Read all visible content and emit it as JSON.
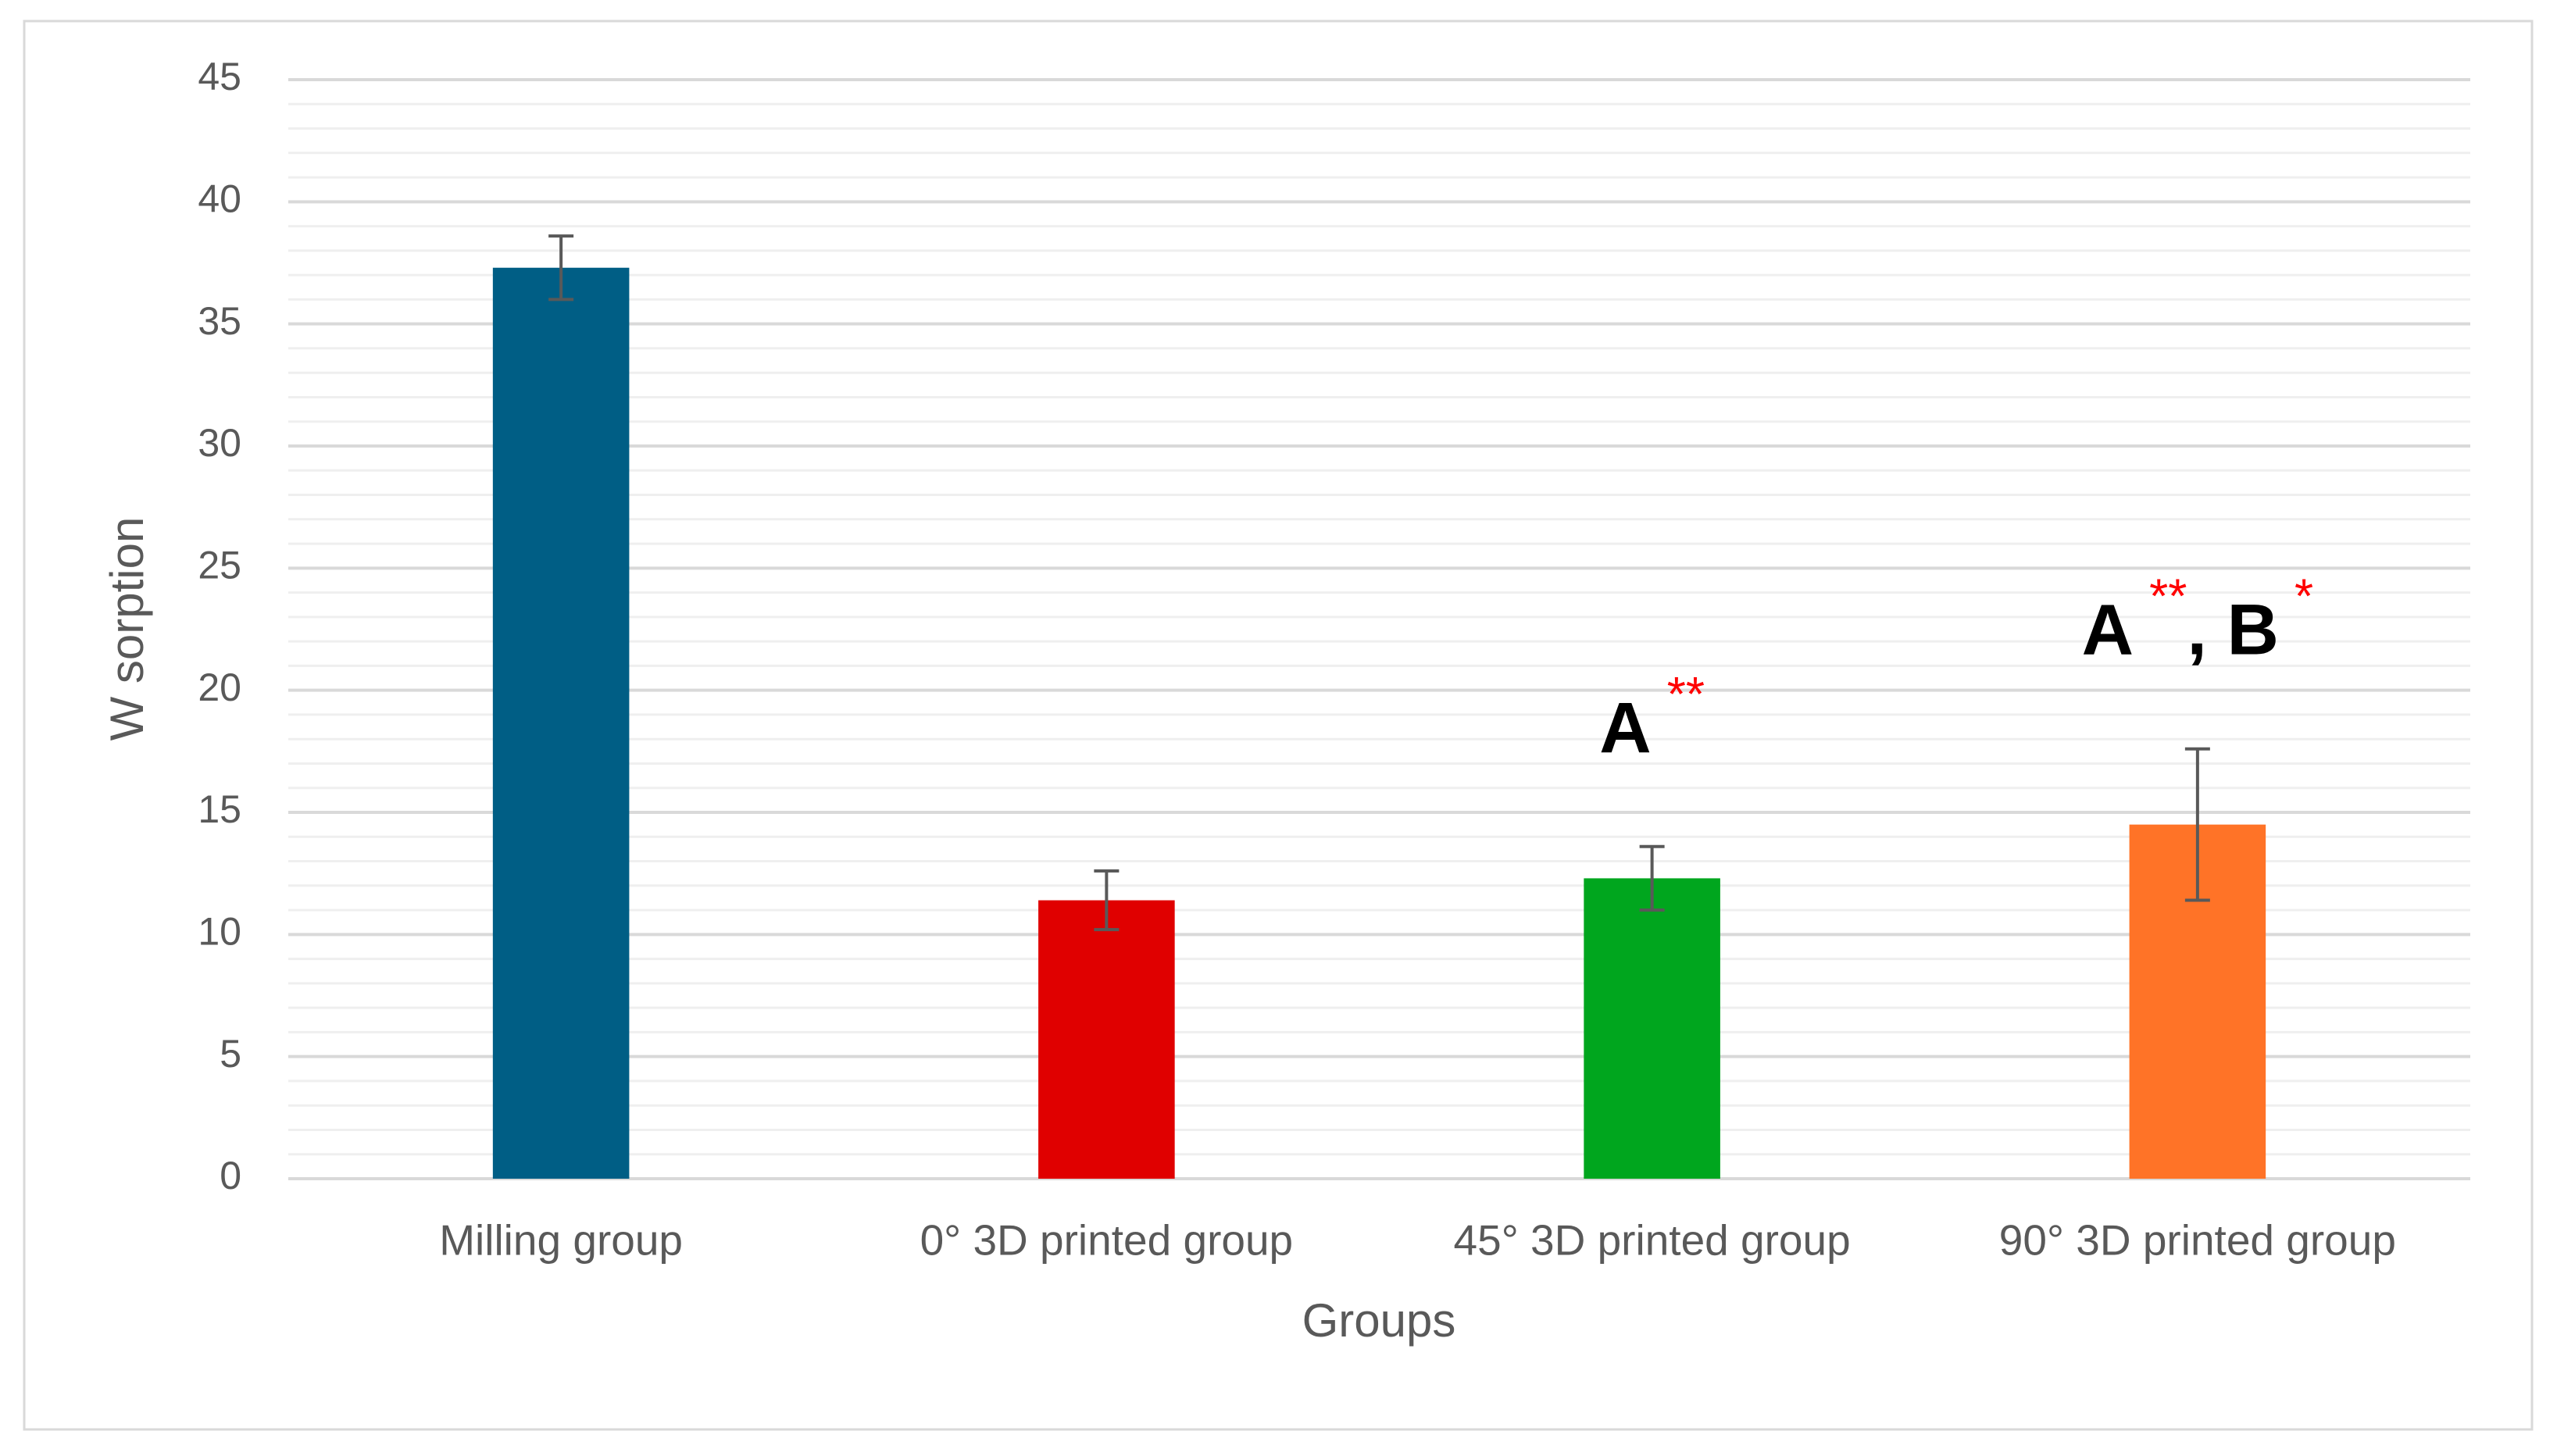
{
  "chart_data": {
    "type": "bar",
    "x_label": "Groups",
    "y_label": "W sorption",
    "categories": [
      "Milling group",
      "0° 3D printed  group",
      "45° 3D printed  group",
      "90° 3D printed  group"
    ],
    "values": [
      37.3,
      11.4,
      12.3,
      14.5
    ],
    "errors": [
      1.3,
      1.2,
      1.3,
      3.1
    ],
    "colors": [
      "#005E85",
      "#E00000",
      "#00A61E",
      "#FF7327"
    ],
    "ylim": [
      0,
      45
    ],
    "yticks": [
      0,
      5,
      10,
      15,
      20,
      25,
      30,
      35,
      40,
      45
    ],
    "minor_ytick_step": 1,
    "grid": true,
    "annotations": [
      {
        "category": 2,
        "parts": [
          {
            "text": "A",
            "color": "#000000"
          },
          {
            "text": "**",
            "color": "#FF0000"
          }
        ]
      },
      {
        "category": 3,
        "parts": [
          {
            "text": "A",
            "color": "#000000"
          },
          {
            "text": "**",
            "color": "#FF0000"
          },
          {
            "text": ", B",
            "color": "#000000"
          },
          {
            "text": "*",
            "color": "#FF0000"
          }
        ]
      }
    ]
  }
}
